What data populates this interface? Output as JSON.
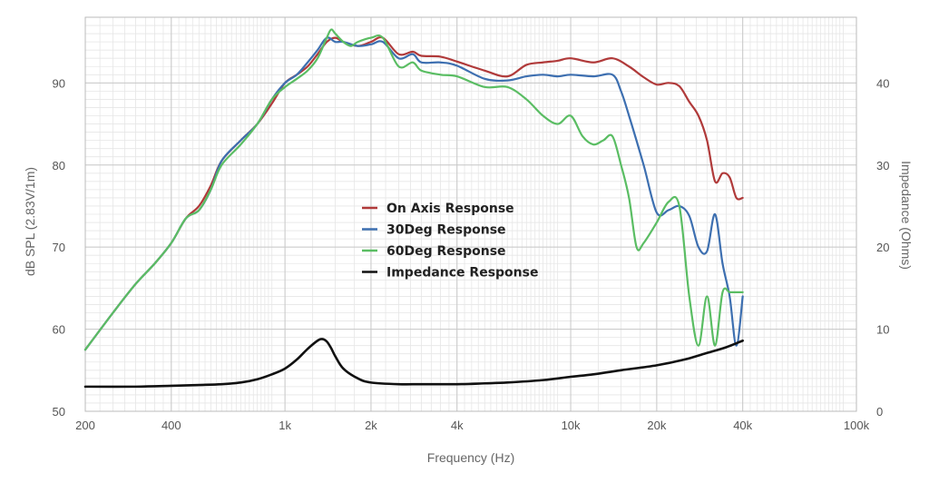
{
  "chart_data": {
    "type": "line",
    "title": "",
    "xlabel": "Frequency (Hz)",
    "ylabel_left": "dB SPL (2.83V/1m)",
    "ylabel_right": "Impedance (Ohms)",
    "x_scale": "log",
    "xlim": [
      200,
      100000
    ],
    "ylim_left": [
      50,
      98
    ],
    "ylim_right": [
      0,
      48
    ],
    "x_ticks": [
      200,
      400,
      1000,
      2000,
      4000,
      10000,
      20000,
      40000,
      100000
    ],
    "x_tick_labels": [
      "200",
      "400",
      "1k",
      "2k",
      "4k",
      "10k",
      "20k",
      "40k",
      "100k"
    ],
    "y_ticks_left": [
      50,
      60,
      70,
      80,
      90
    ],
    "y_ticks_right": [
      0,
      10,
      20,
      30,
      40
    ],
    "grid": true,
    "legend_position": "center",
    "series": [
      {
        "name": "On Axis Response",
        "axis": "left",
        "color": "#b03a3a",
        "x": [
          200,
          250,
          300,
          350,
          400,
          450,
          500,
          550,
          600,
          700,
          800,
          900,
          1000,
          1100,
          1200,
          1300,
          1400,
          1500,
          1600,
          1800,
          2000,
          2200,
          2500,
          2800,
          3000,
          3500,
          4000,
          5000,
          6000,
          7000,
          8000,
          9000,
          10000,
          12000,
          14000,
          16000,
          18000,
          20000,
          22000,
          24000,
          26000,
          28000,
          30000,
          32000,
          34000,
          36000,
          38000,
          40000
        ],
        "y": [
          57.5,
          62,
          65.5,
          68,
          70.5,
          73.5,
          75,
          77.5,
          80.5,
          83,
          85,
          87.5,
          90,
          91,
          92,
          93.5,
          95,
          95.5,
          95,
          94.5,
          95,
          95.5,
          93.5,
          93.8,
          93.3,
          93.2,
          92.6,
          91.5,
          90.8,
          92.2,
          92.5,
          92.7,
          93,
          92.5,
          93,
          92,
          90.7,
          89.8,
          90,
          89.6,
          87.7,
          86,
          83,
          78,
          79,
          78.5,
          76,
          76
        ]
      },
      {
        "name": "30Deg Response",
        "axis": "left",
        "color": "#3d6fb0",
        "x": [
          200,
          250,
          300,
          350,
          400,
          450,
          500,
          550,
          600,
          700,
          800,
          900,
          1000,
          1100,
          1200,
          1300,
          1400,
          1500,
          1600,
          1800,
          2000,
          2200,
          2500,
          2800,
          3000,
          3500,
          4000,
          5000,
          6000,
          7000,
          8000,
          9000,
          10000,
          12000,
          14000,
          15000,
          16000,
          18000,
          20000,
          22000,
          24000,
          26000,
          28000,
          30000,
          32000,
          34000,
          36000,
          38000,
          40000
        ],
        "y": [
          57.5,
          62,
          65.5,
          68,
          70.5,
          73.5,
          74.5,
          77,
          80.5,
          83,
          85,
          88,
          90,
          91,
          92.5,
          94,
          95.5,
          95,
          95,
          94.5,
          94.7,
          95,
          93,
          93.5,
          92.5,
          92.5,
          92.1,
          90.5,
          90.3,
          90.8,
          91,
          90.8,
          91,
          90.8,
          91,
          89,
          86,
          80,
          74.2,
          74.5,
          75,
          73.8,
          70,
          69.5,
          74,
          68,
          64,
          58,
          64
        ]
      },
      {
        "name": "60Deg Response",
        "axis": "left",
        "color": "#5abd63",
        "x": [
          200,
          250,
          300,
          350,
          400,
          450,
          500,
          550,
          600,
          700,
          800,
          900,
          1000,
          1100,
          1200,
          1300,
          1400,
          1450,
          1500,
          1600,
          1700,
          1800,
          2000,
          2200,
          2500,
          2800,
          3000,
          3500,
          4000,
          5000,
          6000,
          7000,
          8000,
          9000,
          10000,
          11000,
          12000,
          13000,
          14000,
          15000,
          16000,
          17000,
          18000,
          20000,
          22000,
          24000,
          26000,
          28000,
          30000,
          32000,
          34000,
          36000,
          38000,
          40000
        ],
        "y": [
          57.5,
          62,
          65.5,
          68,
          70.5,
          73.5,
          74.5,
          77,
          80,
          82.5,
          85,
          88,
          89.5,
          90.5,
          91.5,
          93,
          95.5,
          96.5,
          96,
          95,
          94.5,
          95,
          95.5,
          95.5,
          92,
          92.5,
          91.5,
          91,
          90.8,
          89.5,
          89.5,
          88,
          86,
          85,
          86,
          83.5,
          82.5,
          83,
          83.5,
          80,
          76,
          70,
          70.5,
          73,
          75.5,
          75,
          64,
          58,
          64,
          58,
          64.5,
          64.5,
          64.5,
          64.5
        ]
      },
      {
        "name": "Impedance Response",
        "axis": "right",
        "color": "#111111",
        "x": [
          200,
          300,
          400,
          500,
          600,
          700,
          800,
          900,
          1000,
          1100,
          1200,
          1300,
          1350,
          1400,
          1450,
          1500,
          1600,
          1800,
          2000,
          2500,
          3000,
          4000,
          5000,
          6000,
          8000,
          10000,
          12000,
          15000,
          20000,
          25000,
          30000,
          35000,
          40000
        ],
        "y": [
          3,
          3,
          3.1,
          3.2,
          3.3,
          3.5,
          3.9,
          4.5,
          5.2,
          6.3,
          7.6,
          8.6,
          8.8,
          8.5,
          7.7,
          6.7,
          5.2,
          4,
          3.5,
          3.3,
          3.3,
          3.3,
          3.4,
          3.5,
          3.8,
          4.2,
          4.5,
          5,
          5.6,
          6.3,
          7.1,
          7.8,
          8.6
        ]
      }
    ]
  }
}
